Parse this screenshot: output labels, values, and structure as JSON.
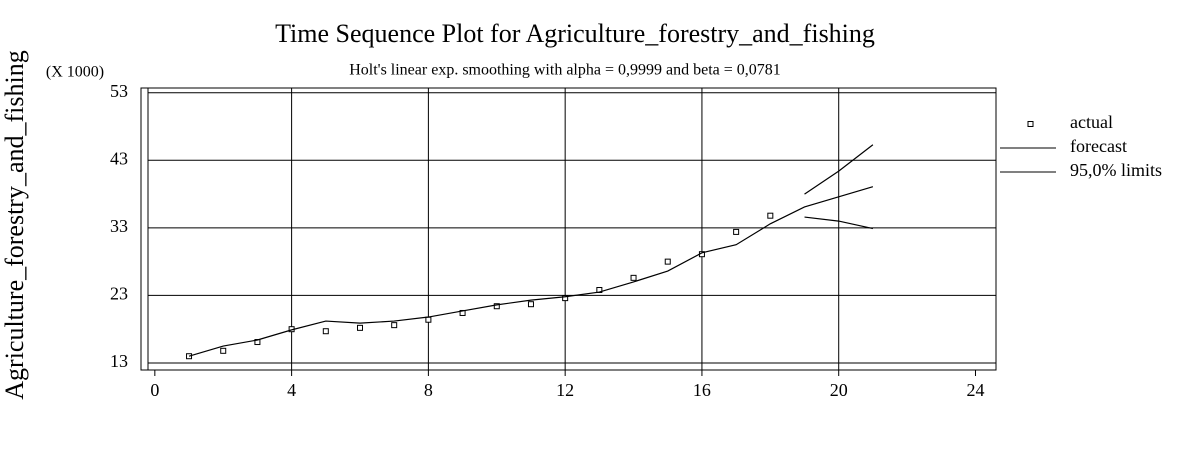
{
  "chart_data": {
    "type": "line",
    "title": "Time Sequence Plot for Agriculture_forestry_and_fishing",
    "subtitle": "Holt's linear exp. smoothing with alpha = 0,9999 and beta = 0,0781",
    "y_label": "Agriculture_forestry_and_fishing",
    "y_scale_note": "(X 1000)",
    "x": [
      1,
      2,
      3,
      4,
      5,
      6,
      7,
      8,
      9,
      10,
      11,
      12,
      13,
      14,
      15,
      16,
      17,
      18,
      19,
      20,
      21
    ],
    "series": [
      {
        "name": "actual",
        "color": "#000000",
        "marker": "square",
        "values": [
          14.0,
          14.8,
          16.1,
          18.0,
          17.7,
          18.2,
          18.6,
          19.4,
          20.4,
          21.4,
          21.7,
          22.6,
          23.8,
          25.6,
          28.0,
          29.1,
          32.4,
          34.8,
          null,
          null,
          null
        ]
      },
      {
        "name": "forecast",
        "color": "#000000",
        "values": [
          14.0,
          15.5,
          16.4,
          17.9,
          19.2,
          18.9,
          19.2,
          19.8,
          20.7,
          21.6,
          22.3,
          22.8,
          23.5,
          25.0,
          26.6,
          29.3,
          30.5,
          33.6,
          36.1,
          37.6,
          39.1
        ]
      },
      {
        "name": "95,0% limits",
        "color": "#000000",
        "values": [
          null,
          null,
          null,
          null,
          null,
          null,
          null,
          null,
          null,
          null,
          null,
          null,
          null,
          null,
          null,
          null,
          null,
          null,
          38.0,
          41.4,
          45.3
        ],
        "lower": [
          null,
          null,
          null,
          null,
          null,
          null,
          null,
          null,
          null,
          null,
          null,
          null,
          null,
          null,
          null,
          null,
          null,
          null,
          34.6,
          34.0,
          32.9
        ]
      }
    ],
    "xlim": [
      -0.2,
      24.6
    ],
    "ylim": [
      11.96,
      53.7
    ],
    "xticks": [
      0,
      4,
      8,
      12,
      16,
      20,
      24
    ],
    "yticks": [
      13,
      23,
      33,
      43,
      53
    ],
    "grid": true,
    "legend": "right"
  }
}
